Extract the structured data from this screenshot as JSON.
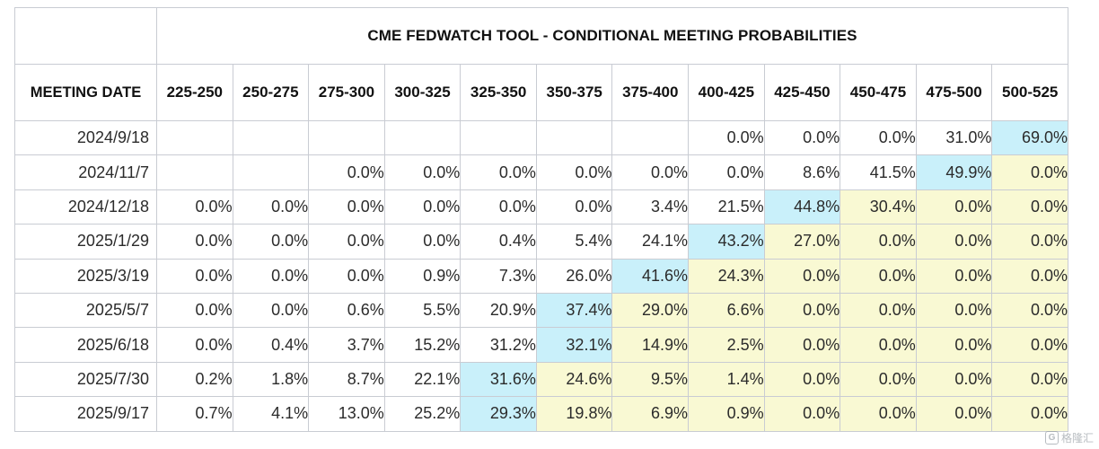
{
  "table": {
    "title": "CME FEDWATCH TOOL - CONDITIONAL MEETING PROBABILITIES",
    "date_header": "MEETING DATE",
    "ranges": [
      "225-250",
      "250-275",
      "275-300",
      "300-325",
      "325-350",
      "350-375",
      "375-400",
      "400-425",
      "425-450",
      "450-475",
      "475-500",
      "500-525"
    ],
    "rows": [
      {
        "date": "2024/9/18",
        "values": [
          "",
          "",
          "",
          "",
          "",
          "",
          "",
          "0.0%",
          "0.0%",
          "0.0%",
          "31.0%",
          "69.0%"
        ],
        "styles": [
          "none",
          "none",
          "none",
          "none",
          "none",
          "none",
          "none",
          "none",
          "none",
          "none",
          "none",
          "max"
        ]
      },
      {
        "date": "2024/11/7",
        "values": [
          "",
          "",
          "0.0%",
          "0.0%",
          "0.0%",
          "0.0%",
          "0.0%",
          "0.0%",
          "8.6%",
          "41.5%",
          "49.9%",
          "0.0%"
        ],
        "styles": [
          "none",
          "none",
          "none",
          "none",
          "none",
          "none",
          "none",
          "none",
          "none",
          "none",
          "max",
          "tail"
        ]
      },
      {
        "date": "2024/12/18",
        "values": [
          "0.0%",
          "0.0%",
          "0.0%",
          "0.0%",
          "0.0%",
          "0.0%",
          "3.4%",
          "21.5%",
          "44.8%",
          "30.4%",
          "0.0%",
          "0.0%"
        ],
        "styles": [
          "none",
          "none",
          "none",
          "none",
          "none",
          "none",
          "none",
          "none",
          "max",
          "tail",
          "tail",
          "tail"
        ]
      },
      {
        "date": "2025/1/29",
        "values": [
          "0.0%",
          "0.0%",
          "0.0%",
          "0.0%",
          "0.4%",
          "5.4%",
          "24.1%",
          "43.2%",
          "27.0%",
          "0.0%",
          "0.0%",
          "0.0%"
        ],
        "styles": [
          "none",
          "none",
          "none",
          "none",
          "none",
          "none",
          "none",
          "max",
          "tail",
          "tail",
          "tail",
          "tail"
        ]
      },
      {
        "date": "2025/3/19",
        "values": [
          "0.0%",
          "0.0%",
          "0.0%",
          "0.9%",
          "7.3%",
          "26.0%",
          "41.6%",
          "24.3%",
          "0.0%",
          "0.0%",
          "0.0%",
          "0.0%"
        ],
        "styles": [
          "none",
          "none",
          "none",
          "none",
          "none",
          "none",
          "max",
          "tail",
          "tail",
          "tail",
          "tail",
          "tail"
        ]
      },
      {
        "date": "2025/5/7",
        "values": [
          "0.0%",
          "0.0%",
          "0.6%",
          "5.5%",
          "20.9%",
          "37.4%",
          "29.0%",
          "6.6%",
          "0.0%",
          "0.0%",
          "0.0%",
          "0.0%"
        ],
        "styles": [
          "none",
          "none",
          "none",
          "none",
          "none",
          "max",
          "tail",
          "tail",
          "tail",
          "tail",
          "tail",
          "tail"
        ]
      },
      {
        "date": "2025/6/18",
        "values": [
          "0.0%",
          "0.4%",
          "3.7%",
          "15.2%",
          "31.2%",
          "32.1%",
          "14.9%",
          "2.5%",
          "0.0%",
          "0.0%",
          "0.0%",
          "0.0%"
        ],
        "styles": [
          "none",
          "none",
          "none",
          "none",
          "none",
          "max",
          "tail",
          "tail",
          "tail",
          "tail",
          "tail",
          "tail"
        ]
      },
      {
        "date": "2025/7/30",
        "values": [
          "0.2%",
          "1.8%",
          "8.7%",
          "22.1%",
          "31.6%",
          "24.6%",
          "9.5%",
          "1.4%",
          "0.0%",
          "0.0%",
          "0.0%",
          "0.0%"
        ],
        "styles": [
          "none",
          "none",
          "none",
          "none",
          "max",
          "tail",
          "tail",
          "tail",
          "tail",
          "tail",
          "tail",
          "tail"
        ]
      },
      {
        "date": "2025/9/17",
        "values": [
          "0.7%",
          "4.1%",
          "13.0%",
          "25.2%",
          "29.3%",
          "19.8%",
          "6.9%",
          "0.9%",
          "0.0%",
          "0.0%",
          "0.0%",
          "0.0%"
        ],
        "styles": [
          "none",
          "none",
          "none",
          "none",
          "max",
          "tail",
          "tail",
          "tail",
          "tail",
          "tail",
          "tail",
          "tail"
        ]
      }
    ]
  },
  "colors": {
    "max": "#c9f0fa",
    "tail": "#f9f9d3",
    "border": "#c9ccd3"
  },
  "watermark": {
    "glyph": "G",
    "text": "格隆汇"
  }
}
